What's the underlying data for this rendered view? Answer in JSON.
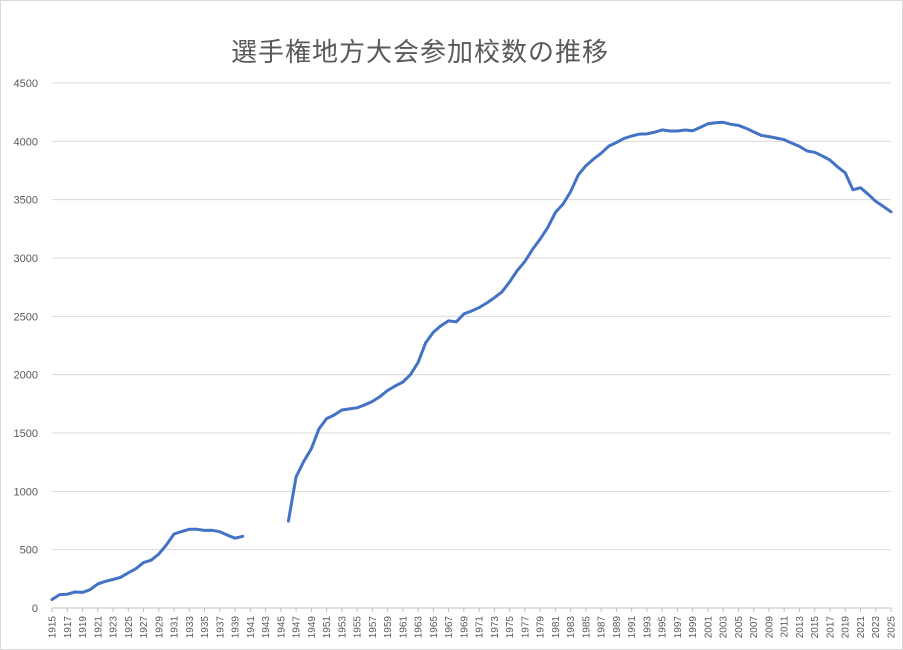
{
  "chart_data": {
    "type": "line",
    "title": "選手権地方大会参加校数の推移",
    "xlabel": "",
    "ylabel": "",
    "ylim": [
      0,
      4500
    ],
    "yticks": [
      0,
      500,
      1000,
      1500,
      2000,
      2500,
      3000,
      3500,
      4000,
      4500
    ],
    "grid": true,
    "legend": "none",
    "color": "#4472c4",
    "xticks": [
      "1915",
      "1917",
      "1919",
      "1921",
      "1923",
      "1925",
      "1927",
      "1929",
      "1931",
      "1933",
      "1935",
      "1937",
      "1939",
      "1941",
      "1943",
      "1945",
      "1947",
      "1949",
      "1951",
      "1953",
      "1955",
      "1957",
      "1959",
      "1961",
      "1963",
      "1965",
      "1967",
      "1969",
      "1971",
      "1973",
      "1975",
      "1977",
      "1979",
      "1981",
      "1983",
      "1985",
      "1987",
      "1989",
      "1991",
      "1993",
      "1995",
      "1997",
      "1999",
      "2001",
      "2003",
      "2005",
      "2007",
      "2009",
      "2011",
      "2013",
      "2015",
      "2017",
      "2019",
      "2021",
      "2023",
      "2025"
    ],
    "series": [
      {
        "segments": [
          [
            [
              1915,
              73
            ],
            [
              1916,
              115
            ],
            [
              1917,
              118
            ],
            [
              1918,
              137
            ],
            [
              1919,
              134
            ],
            [
              1920,
              157
            ],
            [
              1921,
              207
            ],
            [
              1922,
              229
            ],
            [
              1923,
              244
            ],
            [
              1924,
              263
            ],
            [
              1925,
              302
            ],
            [
              1926,
              337
            ],
            [
              1927,
              389
            ],
            [
              1928,
              410
            ],
            [
              1929,
              463
            ],
            [
              1930,
              541
            ],
            [
              1931,
              634
            ],
            [
              1932,
              656
            ],
            [
              1933,
              675
            ],
            [
              1934,
              675
            ],
            [
              1935,
              665
            ],
            [
              1936,
              666
            ],
            [
              1937,
              654
            ],
            [
              1938,
              625
            ],
            [
              1939,
              598
            ],
            [
              1940,
              615
            ]
          ],
          [
            [
              1946,
              745
            ],
            [
              1947,
              1125
            ],
            [
              1948,
              1256
            ],
            [
              1949,
              1365
            ],
            [
              1950,
              1536
            ],
            [
              1951,
              1623
            ],
            [
              1952,
              1654
            ],
            [
              1953,
              1697
            ],
            [
              1954,
              1707
            ],
            [
              1955,
              1716
            ],
            [
              1956,
              1741
            ],
            [
              1957,
              1770
            ],
            [
              1958,
              1812
            ],
            [
              1959,
              1865
            ],
            [
              1960,
              1903
            ],
            [
              1961,
              1937
            ],
            [
              1962,
              2001
            ],
            [
              1963,
              2105
            ],
            [
              1964,
              2274
            ],
            [
              1965,
              2365
            ],
            [
              1966,
              2420
            ],
            [
              1967,
              2462
            ],
            [
              1968,
              2452
            ],
            [
              1969,
              2521
            ],
            [
              1970,
              2546
            ],
            [
              1971,
              2575
            ],
            [
              1972,
              2614
            ],
            [
              1973,
              2660
            ],
            [
              1974,
              2710
            ],
            [
              1975,
              2795
            ],
            [
              1976,
              2893
            ],
            [
              1977,
              2971
            ],
            [
              1978,
              3074
            ],
            [
              1979,
              3161
            ],
            [
              1980,
              3262
            ],
            [
              1981,
              3391
            ],
            [
              1982,
              3462
            ],
            [
              1983,
              3570
            ],
            [
              1984,
              3712
            ],
            [
              1985,
              3791
            ],
            [
              1986,
              3848
            ],
            [
              1987,
              3898
            ],
            [
              1988,
              3959
            ],
            [
              1989,
              3990
            ],
            [
              1990,
              4025
            ],
            [
              1991,
              4046
            ],
            [
              1992,
              4062
            ],
            [
              1993,
              4064
            ],
            [
              1994,
              4078
            ],
            [
              1995,
              4098
            ],
            [
              1996,
              4089
            ],
            [
              1997,
              4089
            ],
            [
              1998,
              4097
            ],
            [
              1999,
              4090
            ],
            [
              2000,
              4119
            ],
            [
              2001,
              4150
            ],
            [
              2002,
              4159
            ],
            [
              2003,
              4163
            ],
            [
              2004,
              4146
            ],
            [
              2005,
              4137
            ],
            [
              2006,
              4112
            ],
            [
              2007,
              4081
            ],
            [
              2008,
              4051
            ],
            [
              2009,
              4041
            ],
            [
              2010,
              4028
            ],
            [
              2011,
              4014
            ],
            [
              2012,
              3985
            ],
            [
              2013,
              3957
            ],
            [
              2014,
              3917
            ],
            [
              2015,
              3906
            ],
            [
              2016,
              3874
            ],
            [
              2017,
              3839
            ],
            [
              2018,
              3781
            ],
            [
              2019,
              3730
            ],
            [
              2020,
              3585
            ],
            [
              2021,
              3603
            ],
            [
              2022,
              3547
            ],
            [
              2023,
              3486
            ],
            [
              2024,
              3441
            ],
            [
              2025,
              3396
            ]
          ]
        ]
      }
    ]
  }
}
